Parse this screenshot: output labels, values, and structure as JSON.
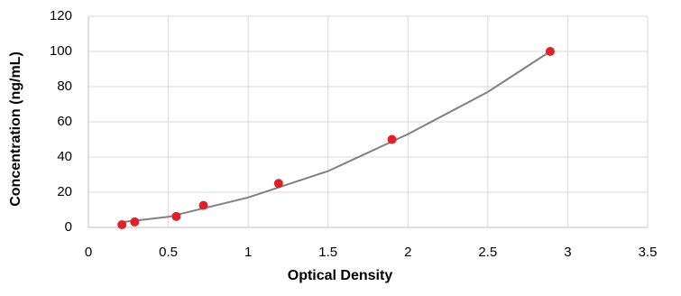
{
  "chart_data": {
    "type": "scatter",
    "xlabel": "Optical Density",
    "ylabel": "Concentration (ng/mL)",
    "xlim": [
      0,
      3.5
    ],
    "xticks": [
      0,
      0.5,
      1,
      1.5,
      2,
      2.5,
      3,
      3.5
    ],
    "ylim": [
      0,
      120
    ],
    "yticks": [
      0,
      20,
      40,
      60,
      80,
      100,
      120
    ],
    "grid": true,
    "series": [
      {
        "mode": "line",
        "color": "#808080",
        "x": [
          0.21,
          0.5,
          1,
          1.5,
          2,
          2.5,
          2.89
        ],
        "values": [
          3,
          6,
          17,
          32,
          53,
          77,
          100
        ]
      },
      {
        "mode": "markers",
        "color": "#e0202a",
        "x": [
          0.21,
          0.29,
          0.55,
          0.72,
          1.19,
          1.9,
          2.89
        ],
        "values": [
          1.56,
          3.12,
          6.25,
          12.5,
          25,
          50,
          100
        ]
      }
    ]
  }
}
